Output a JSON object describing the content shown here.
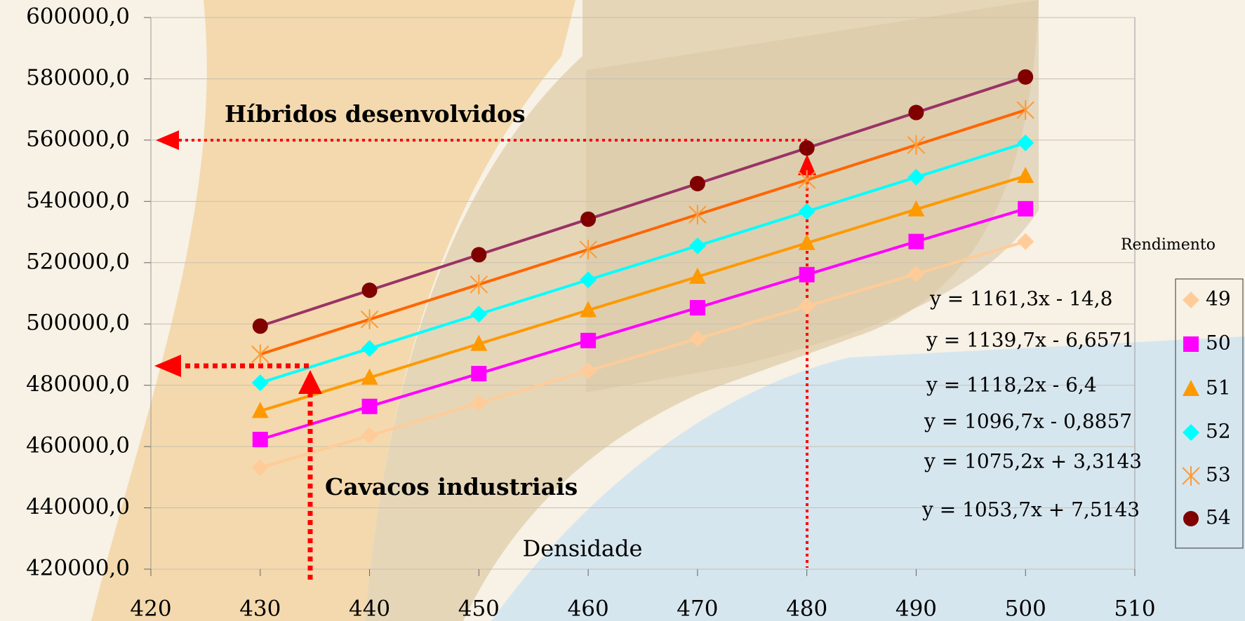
{
  "chart_data": {
    "type": "line",
    "x_label": "Densidade",
    "legend_title": "Rendimento",
    "categories_x": null,
    "x": [
      430,
      440,
      450,
      460,
      470,
      480,
      490,
      500
    ],
    "xlim": [
      420,
      510
    ],
    "xticks": [
      420,
      430,
      440,
      450,
      460,
      470,
      480,
      490,
      500,
      510
    ],
    "ylim": [
      420000,
      600000
    ],
    "yticks": [
      {
        "value": 420000,
        "label": "420000,0"
      },
      {
        "value": 440000,
        "label": "440000,0"
      },
      {
        "value": 460000,
        "label": "460000,0"
      },
      {
        "value": 480000,
        "label": "480000,0"
      },
      {
        "value": 500000,
        "label": "500000,0"
      },
      {
        "value": 520000,
        "label": "520000,0"
      },
      {
        "value": 540000,
        "label": "540000,0"
      },
      {
        "value": 560000,
        "label": "560000,0"
      },
      {
        "value": 580000,
        "label": "580000,0"
      },
      {
        "value": 600000,
        "label": "600000,0"
      }
    ],
    "grid": true,
    "legend_position": "right",
    "series": [
      {
        "name": "49",
        "color": "#FFCC99",
        "line_color": "#FFCC99",
        "marker": "diamond",
        "values": [
          453100,
          463600,
          474200,
          484700,
          495200,
          505800,
          516300,
          526900
        ]
      },
      {
        "name": "50",
        "color": "#FF00FF",
        "line_color": "#FF00FF",
        "marker": "square",
        "values": [
          462300,
          473100,
          483800,
          494600,
          505300,
          516100,
          526900,
          537600
        ]
      },
      {
        "name": "51",
        "color": "#FF9900",
        "line_color": "#FF9900",
        "marker": "triangle",
        "values": [
          471600,
          482500,
          493500,
          504500,
          515400,
          526400,
          537400,
          548300
        ]
      },
      {
        "name": "52",
        "color": "#00FFFF",
        "line_color": "#00FFFF",
        "marker": "diamond",
        "values": [
          480800,
          492000,
          503200,
          514400,
          525500,
          536700,
          547900,
          559100
        ]
      },
      {
        "name": "53",
        "color": "#FF9933",
        "line_color": "#FF6600",
        "marker": "star",
        "values": [
          490100,
          501500,
          512900,
          524300,
          535700,
          547000,
          558400,
          569800
        ]
      },
      {
        "name": "54",
        "color": "#800000",
        "line_color": "#993366",
        "marker": "circle",
        "values": [
          499300,
          511000,
          522600,
          534200,
          545800,
          557400,
          569000,
          580600
        ]
      }
    ],
    "annotations": [
      "Híbridos desenvolvidos",
      "Cavacos industriais"
    ],
    "equations": [
      "y = 1161,3x - 14,8",
      "y = 1139,7x - 6,6571",
      "y = 1118,2x - 6,4",
      "y = 1096,7x - 0,8857",
      "y = 1075,2x + 3,3143",
      "y = 1053,7x + 7,5143"
    ]
  }
}
